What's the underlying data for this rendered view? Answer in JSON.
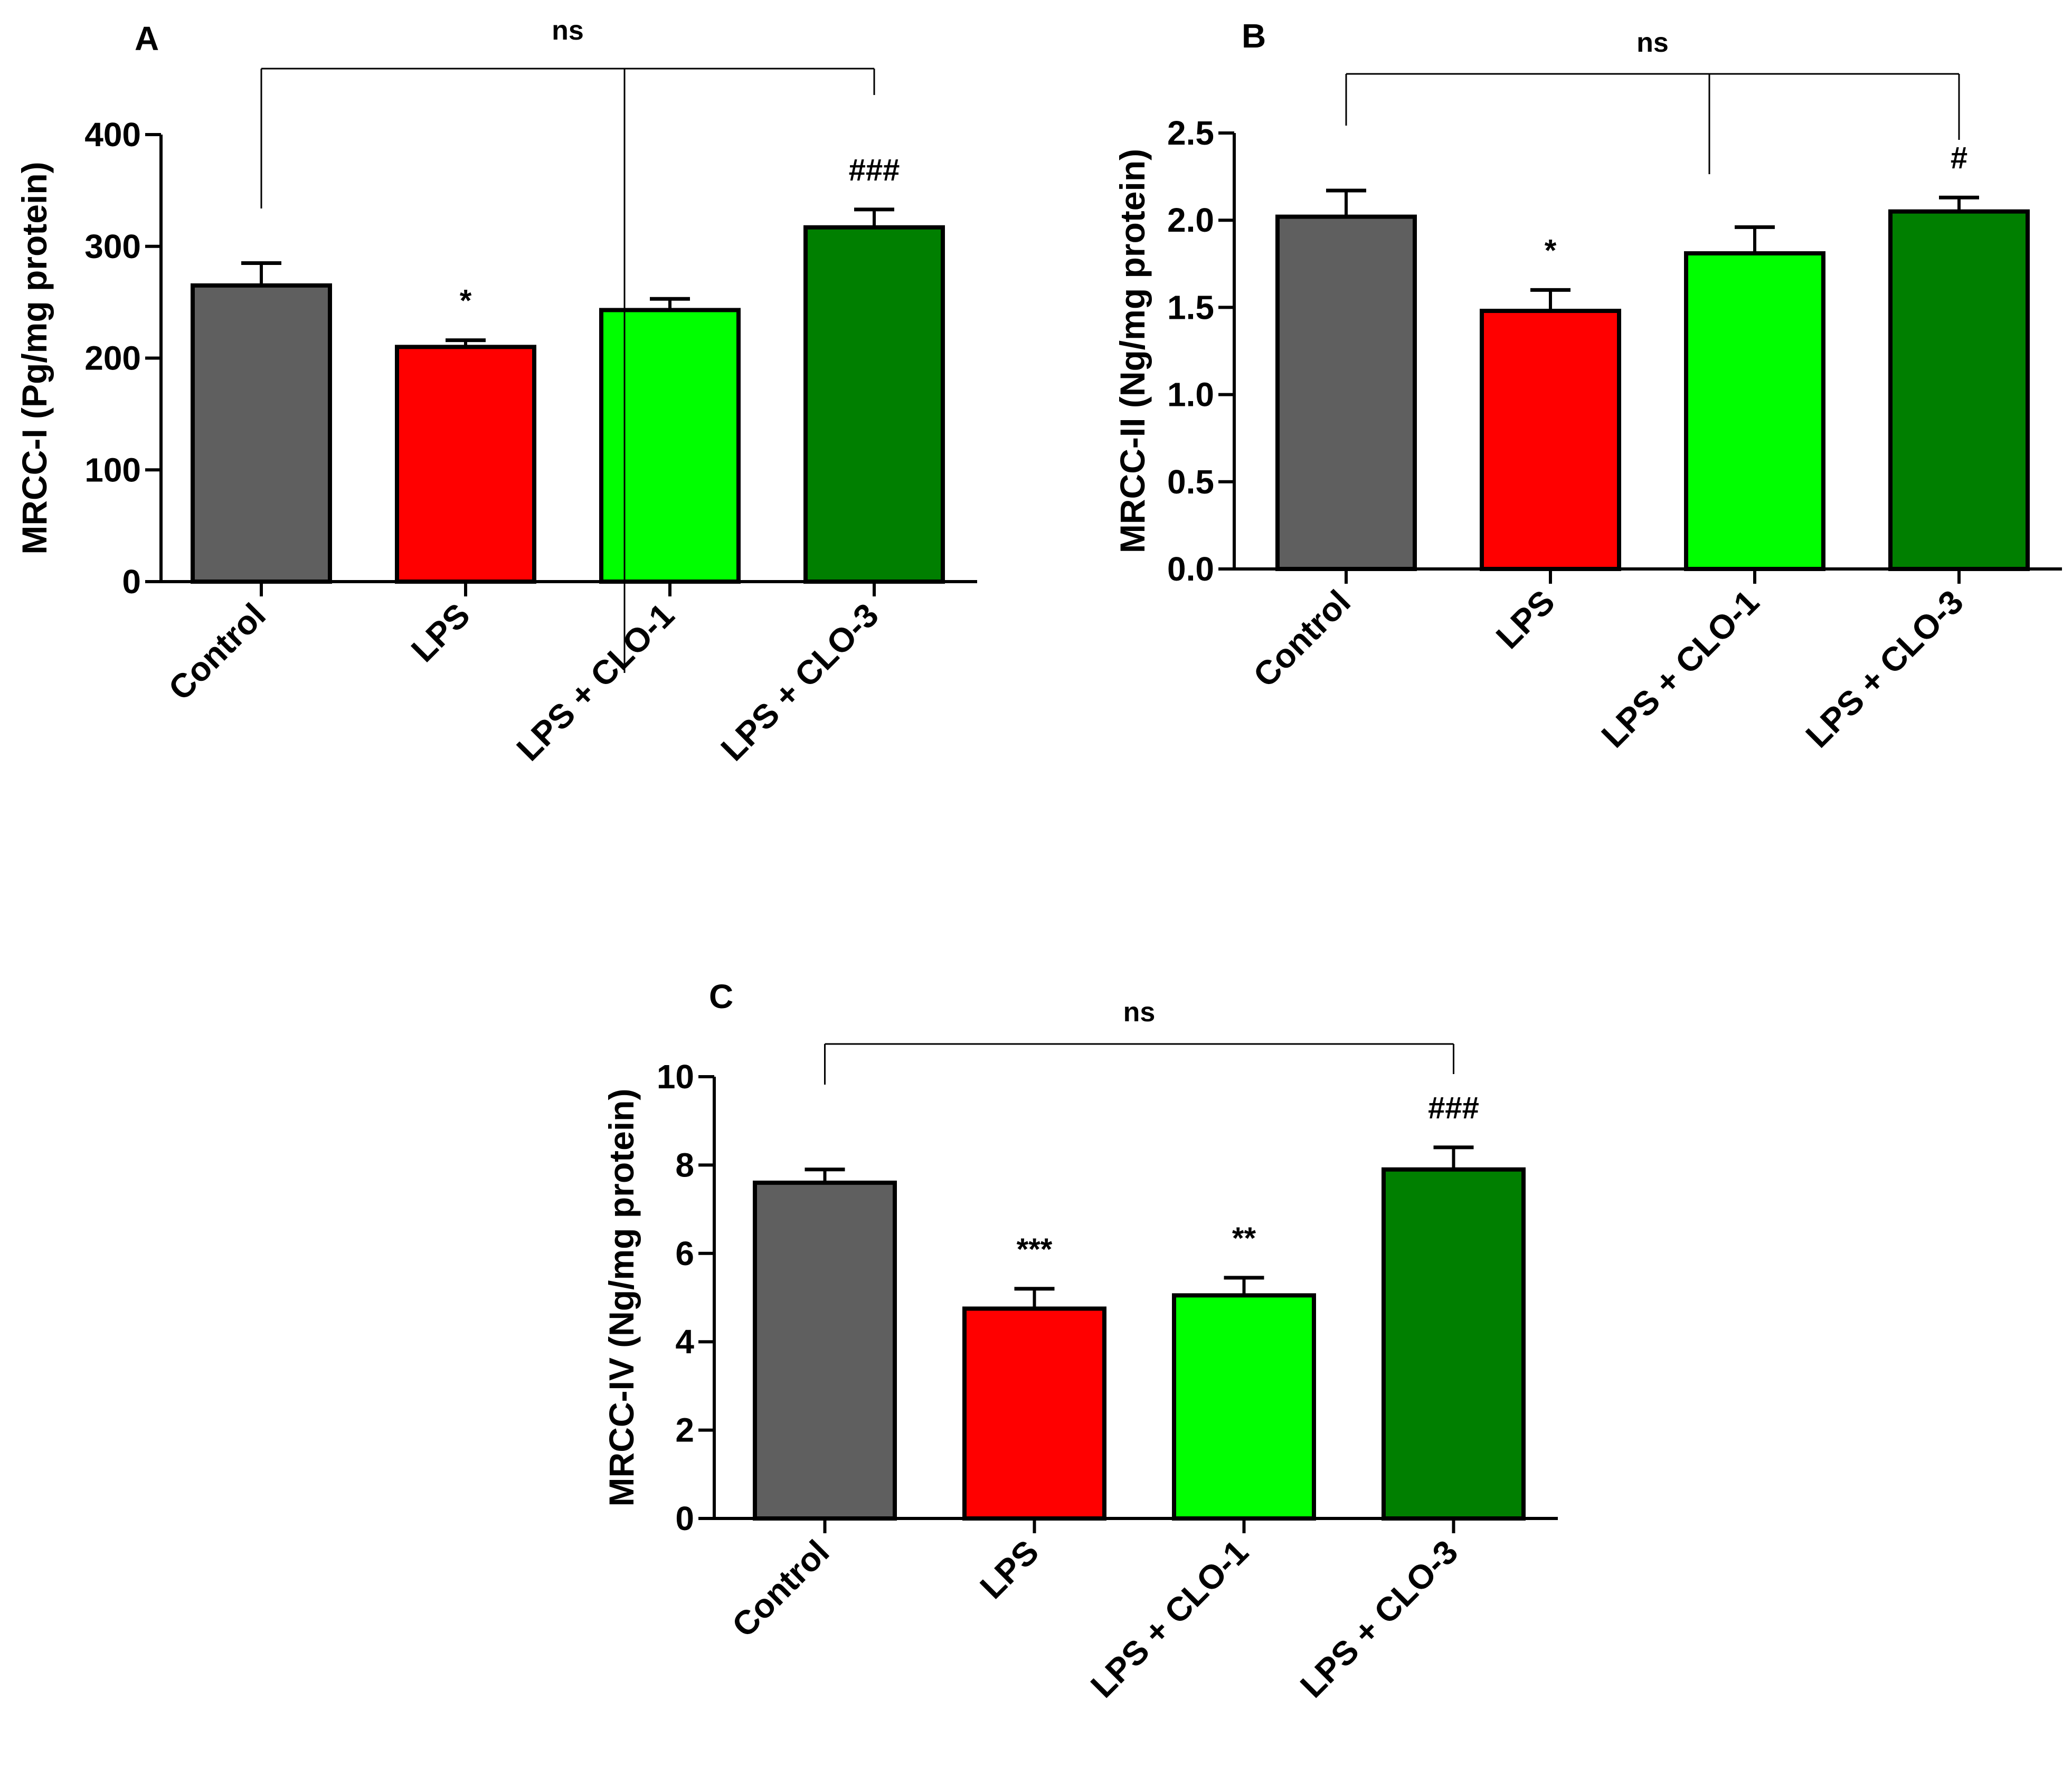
{
  "chart_data": [
    {
      "panel": "A",
      "type": "bar",
      "ylabel": "MRCC-I (Pg/mg protein)",
      "categories": [
        "Control",
        "LPS",
        "LPS + CLO-1",
        "LPS + CLO-3"
      ],
      "values": [
        265,
        210,
        243,
        317
      ],
      "errors": [
        20,
        6,
        10,
        16
      ],
      "colors": [
        "#5f5f5f",
        "#ff0000",
        "#00ff00",
        "#007f00"
      ],
      "significance": [
        "",
        "*",
        "",
        "###"
      ],
      "ylim": [
        0,
        400
      ],
      "yticks": [
        0,
        100,
        200,
        300,
        400
      ],
      "ytick_labels": [
        "0",
        "100",
        "200",
        "300",
        "400"
      ],
      "bracket": {
        "label": "ns",
        "from": 0,
        "to": 3,
        "mid": 2
      }
    },
    {
      "panel": "B",
      "type": "bar",
      "ylabel": "MRCC-II (Ng/mg protein)",
      "categories": [
        "Control",
        "LPS",
        "LPS + CLO-1",
        "LPS + CLO-3"
      ],
      "values": [
        2.02,
        1.48,
        1.81,
        2.05
      ],
      "errors": [
        0.15,
        0.12,
        0.15,
        0.08
      ],
      "colors": [
        "#5f5f5f",
        "#ff0000",
        "#00ff00",
        "#007f00"
      ],
      "significance": [
        "",
        "*",
        "",
        "#"
      ],
      "ylim": [
        0,
        2.5
      ],
      "yticks": [
        0,
        0.5,
        1.0,
        1.5,
        2.0,
        2.5
      ],
      "ytick_labels": [
        "0.0",
        "0.5",
        "1.0",
        "1.5",
        "2.0",
        "2.5"
      ],
      "bracket": {
        "label": "ns",
        "from": 0,
        "to": 3,
        "mid": 2
      }
    },
    {
      "panel": "C",
      "type": "bar",
      "ylabel": "MRCC-IV (Ng/mg protein)",
      "categories": [
        "Control",
        "LPS",
        "LPS + CLO-1",
        "LPS + CLO-3"
      ],
      "values": [
        7.6,
        4.75,
        5.05,
        7.9
      ],
      "errors": [
        0.3,
        0.45,
        0.4,
        0.5
      ],
      "colors": [
        "#5f5f5f",
        "#ff0000",
        "#00ff00",
        "#007f00"
      ],
      "significance": [
        "",
        "***",
        "**",
        "###"
      ],
      "ylim": [
        0,
        10
      ],
      "yticks": [
        0,
        2,
        4,
        6,
        8,
        10
      ],
      "ytick_labels": [
        "0",
        "2",
        "4",
        "6",
        "8",
        "10"
      ],
      "bracket": {
        "label": "ns",
        "from": 0,
        "to": 3,
        "mid": null
      }
    }
  ]
}
